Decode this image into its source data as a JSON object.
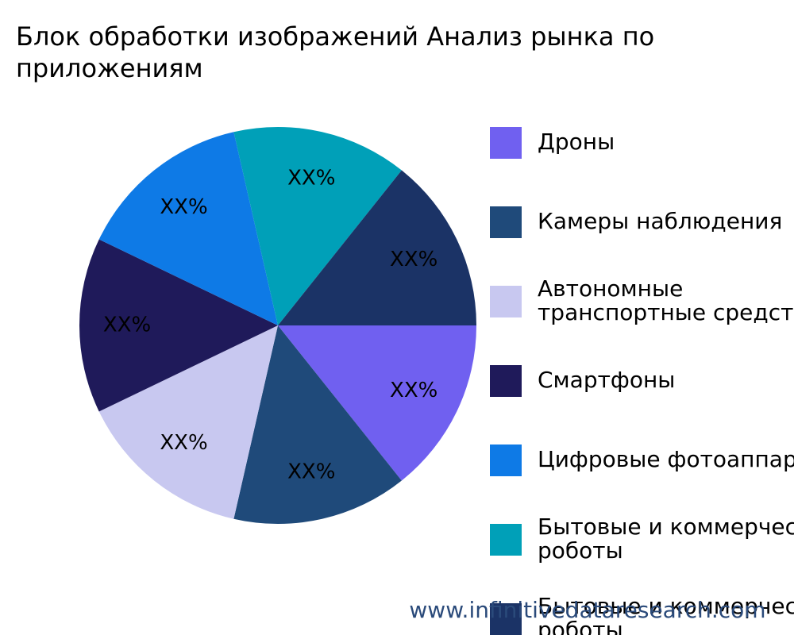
{
  "chart_data": {
    "type": "pie",
    "title": "Блок обработки изображений Анализ рынка по приложениям",
    "categories": [
      "Дроны",
      "Камеры наблюдения",
      "Автономные транспортные средства",
      "Смартфоны",
      "Цифровые фотоаппараты",
      "Бытовые и коммерческие роботы",
      "Бытовые и коммерческие роботы"
    ],
    "values": [
      14.3,
      14.3,
      14.3,
      14.3,
      14.3,
      14.3,
      14.3
    ],
    "value_labels": [
      "XX%",
      "XX%",
      "XX%",
      "XX%",
      "XX%",
      "XX%",
      "XX%"
    ],
    "colors": [
      "#7060f0",
      "#1f4a7a",
      "#c8c8f0",
      "#1f1a5a",
      "#0e7ae6",
      "#00a0b8",
      "#1b3366"
    ],
    "legend": "right",
    "watermark": "www.infinitivedataresearch.com"
  }
}
